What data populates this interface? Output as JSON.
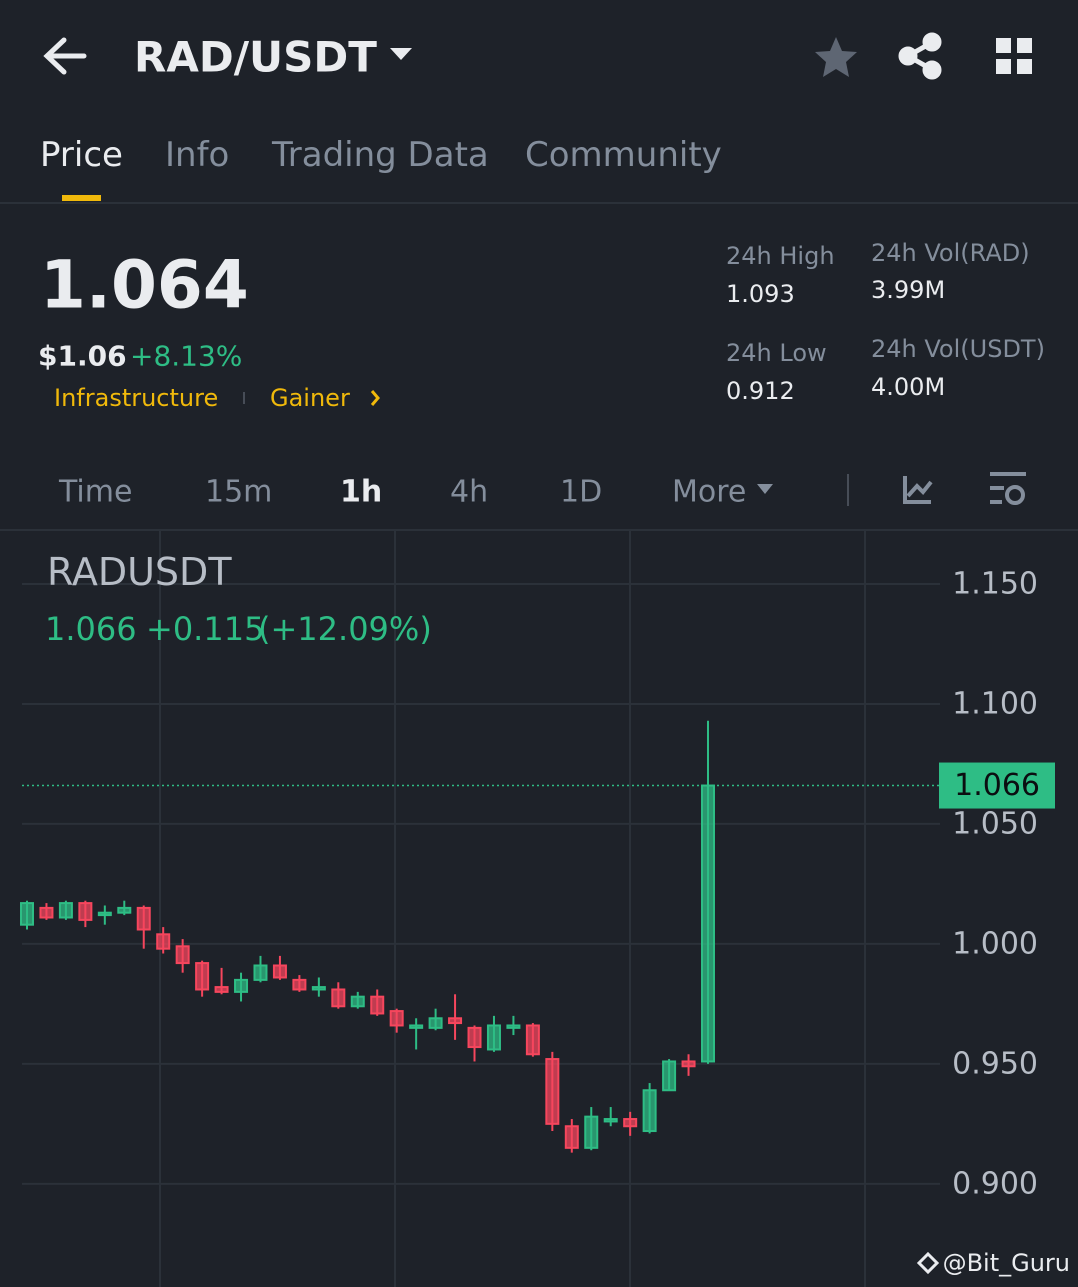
{
  "header": {
    "pair": "RAD/USDT"
  },
  "tabs": [
    "Price",
    "Info",
    "Trading Data",
    "Community"
  ],
  "price": {
    "last": "1.064",
    "usd": "$1.06",
    "change": "+8.13%",
    "tags": [
      "Infrastructure",
      "Gainer"
    ]
  },
  "stats": [
    {
      "label": "24h High",
      "value": "1.093"
    },
    {
      "label": "24h Vol(RAD)",
      "value": "3.99M"
    },
    {
      "label": "24h Low",
      "value": "0.912"
    },
    {
      "label": "24h Vol(USDT)",
      "value": "4.00M"
    }
  ],
  "intervals": [
    "Time",
    "15m",
    "1h",
    "4h",
    "1D",
    "More"
  ],
  "chart_data": {
    "type": "candlestick",
    "title": "RADUSDT",
    "last": 1.066,
    "change": "+0.115",
    "change_pct": "(+12.09%)",
    "up_color": "#2ebd85",
    "down_color": "#f6465d",
    "grid": true,
    "ylim": [
      0.857,
      1.1725
    ],
    "yticks": [
      {
        "value": 1.15,
        "label": "1.150"
      },
      {
        "value": 1.1,
        "label": "1.100"
      },
      {
        "value": 1.05,
        "label": "1.050"
      },
      {
        "value": 1.0,
        "label": "1.000"
      },
      {
        "value": 0.95,
        "label": "0.950"
      },
      {
        "value": 0.9,
        "label": "0.900"
      }
    ],
    "open": [
      1.008,
      1.015,
      1.011,
      1.017,
      1.012,
      1.013,
      1.015,
      1.004,
      0.999,
      0.992,
      0.982,
      0.98,
      0.985,
      0.991,
      0.985,
      0.981,
      0.981,
      0.974,
      0.978,
      0.972,
      0.965,
      0.965,
      0.969,
      0.965,
      0.956,
      0.965,
      0.966,
      0.952,
      0.924,
      0.915,
      0.926,
      0.927,
      0.922,
      0.939,
      0.951,
      0.951
    ],
    "high": [
      1.018,
      1.017,
      1.018,
      1.018,
      1.016,
      1.018,
      1.016,
      1.007,
      1.002,
      0.993,
      0.99,
      0.988,
      0.995,
      0.995,
      0.987,
      0.986,
      0.984,
      0.98,
      0.981,
      0.973,
      0.969,
      0.973,
      0.979,
      0.966,
      0.97,
      0.97,
      0.967,
      0.955,
      0.927,
      0.932,
      0.932,
      0.93,
      0.942,
      0.952,
      0.954,
      1.093
    ],
    "low": [
      1.006,
      1.01,
      1.01,
      1.007,
      1.008,
      1.012,
      0.998,
      0.996,
      0.988,
      0.978,
      0.979,
      0.976,
      0.984,
      0.985,
      0.98,
      0.978,
      0.973,
      0.973,
      0.97,
      0.963,
      0.956,
      0.964,
      0.96,
      0.951,
      0.955,
      0.962,
      0.953,
      0.922,
      0.913,
      0.914,
      0.924,
      0.92,
      0.921,
      0.939,
      0.945,
      0.95
    ],
    "close": [
      1.017,
      1.011,
      1.017,
      1.01,
      1.013,
      1.015,
      1.006,
      0.998,
      0.992,
      0.981,
      0.98,
      0.985,
      0.991,
      0.986,
      0.981,
      0.982,
      0.974,
      0.978,
      0.971,
      0.966,
      0.966,
      0.969,
      0.967,
      0.957,
      0.966,
      0.966,
      0.954,
      0.925,
      0.915,
      0.928,
      0.927,
      0.924,
      0.939,
      0.951,
      0.949,
      1.066
    ]
  },
  "watermark": "@Bit_Guru"
}
